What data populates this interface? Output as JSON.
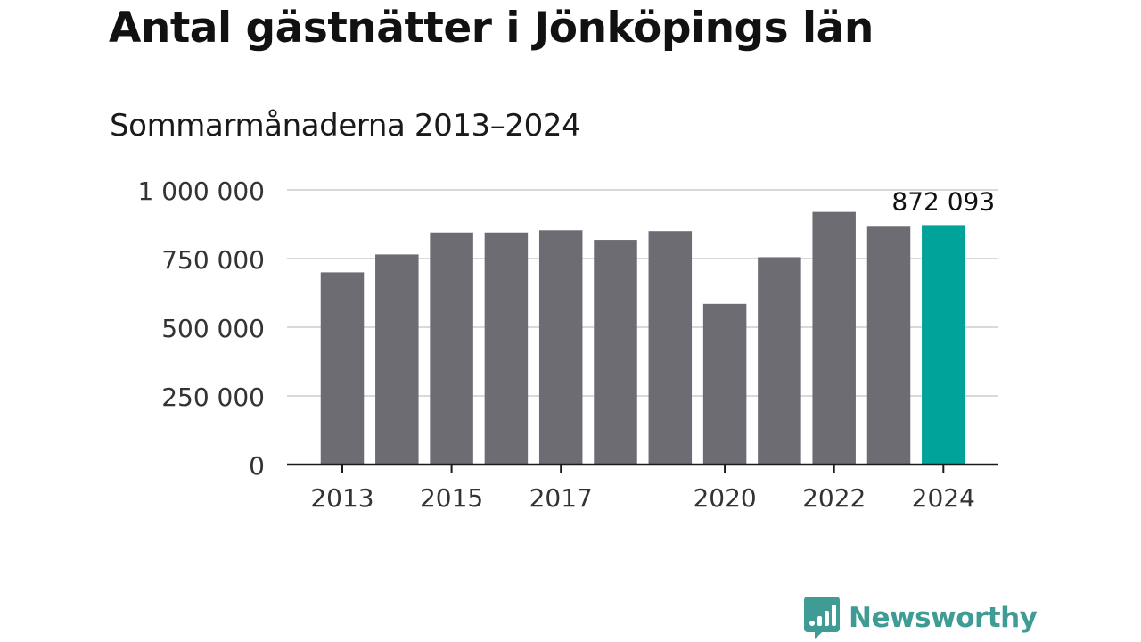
{
  "header": {
    "title": "Antal gästnätter i Jönköpings län",
    "subtitle": "Sommarmånaderna 2013–2024"
  },
  "brand": {
    "name": "Newsworthy",
    "icon": "newsworthy-logo-icon",
    "color": "#3f9c95"
  },
  "colors": {
    "bar": "#6d6c73",
    "highlight": "#00a39a",
    "grid": "#d9d9d9",
    "axis": "#1a1a1a"
  },
  "chart_data": {
    "type": "bar",
    "title": "Antal gästnätter i Jönköpings län",
    "subtitle": "Sommarmånaderna 2013–2024",
    "xlabel": "",
    "ylabel": "",
    "categories": [
      "2013",
      "2014",
      "2015",
      "2016",
      "2017",
      "2018",
      "2019",
      "2020",
      "2021",
      "2022",
      "2023",
      "2024"
    ],
    "values": [
      700000,
      765000,
      845000,
      845000,
      853000,
      818000,
      850000,
      585000,
      755000,
      920000,
      866000,
      872093
    ],
    "highlight_index": 11,
    "data_label": "872 093",
    "ylim": [
      0,
      1000000
    ],
    "yticks": [
      0,
      250000,
      500000,
      750000,
      1000000
    ],
    "ytick_labels": [
      "0",
      "250 000",
      "500 000",
      "750 000",
      "1 000 000"
    ],
    "xtick_labels": [
      "2013",
      "2015",
      "2017",
      "2020",
      "2022",
      "2024"
    ],
    "grid": true,
    "legend": "none"
  }
}
